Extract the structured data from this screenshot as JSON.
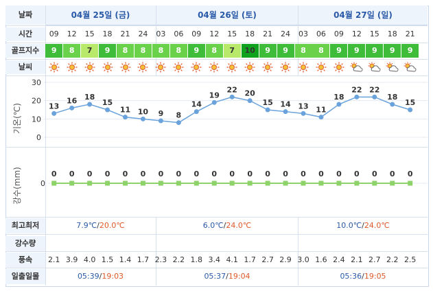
{
  "labels": {
    "date": "날짜",
    "time": "시간",
    "golf_index": "골프지수",
    "weather": "날씨",
    "temp_axis": "기온(℃)",
    "precip_axis": "강수(mm)",
    "highlow": "최고최저",
    "precip_amount": "강수량",
    "wind": "풍속",
    "sunrise_sunset": "일출일몰"
  },
  "days": [
    {
      "label": "04월 25일 (금)",
      "min": "7.9℃",
      "max": "20.0℃",
      "sunrise": "05:39",
      "sunset": "19:03"
    },
    {
      "label": "04월 26일 (토)",
      "min": "6.0℃",
      "max": "24.0℃",
      "sunrise": "05:37",
      "sunset": "19:04"
    },
    {
      "label": "04월 27일 (일)",
      "min": "10.0℃",
      "max": "24.0℃",
      "sunrise": "05:36",
      "sunset": "19:05"
    }
  ],
  "hours": [
    "09",
    "12",
    "15",
    "18",
    "21",
    "24",
    "03",
    "06",
    "09",
    "12",
    "15",
    "18",
    "21",
    "24",
    "03",
    "06",
    "09",
    "12",
    "15",
    "18",
    "21"
  ],
  "golf_index": [
    "9",
    "8",
    "7",
    "9",
    "8",
    "8",
    "8",
    "8",
    "9",
    "8",
    "7",
    "10",
    "9",
    "9",
    "8",
    "8",
    "9",
    "9",
    "9",
    "9",
    "9"
  ],
  "golf_colors": {
    "7": "#b8e96a",
    "8": "#6ad24a",
    "9": "#3fbd3a",
    "10": "#0fa21f"
  },
  "weather_icons": [
    "sun-icon",
    "sun-icon",
    "sun-icon",
    "sun-icon",
    "sun-icon",
    "sun-icon",
    "sun-icon",
    "sun-icon",
    "sun-icon",
    "sun-icon",
    "sun-icon",
    "sun-icon",
    "sun-icon",
    "sun-icon",
    "sun-icon",
    "sun-icon",
    "sun-icon",
    "partly-cloudy-icon",
    "partly-cloudy-icon",
    "partly-cloudy-icon",
    "partly-cloudy-icon"
  ],
  "wind": [
    "2.1",
    "3.9",
    "4.0",
    "1.5",
    "1.4",
    "1.7",
    "2.3",
    "2.2",
    "1.8",
    "3.4",
    "4.1",
    "1.7",
    "2.7",
    "2.9",
    "3.0",
    "1.6",
    "2.4",
    "2.1",
    "2.7",
    "2.2",
    "2.5"
  ],
  "temp_axis_ticks": [
    "30",
    "20",
    "10",
    "0"
  ],
  "precip_axis_ticks": [
    "0"
  ],
  "chart_data": [
    {
      "type": "line",
      "x": [
        "09",
        "12",
        "15",
        "18",
        "21",
        "24",
        "03",
        "06",
        "09",
        "12",
        "15",
        "18",
        "21",
        "24",
        "03",
        "06",
        "09",
        "12",
        "15",
        "18",
        "21"
      ],
      "values": [
        13,
        16,
        18,
        15,
        11,
        10,
        9,
        8,
        14,
        19,
        22,
        20,
        15,
        14,
        13,
        11,
        18,
        22,
        22,
        18,
        15
      ],
      "ylabel": "기온(℃)",
      "ylim": [
        0,
        30
      ],
      "grid": true,
      "color": "#6aa3dc"
    },
    {
      "type": "line",
      "x": [
        "09",
        "12",
        "15",
        "18",
        "21",
        "24",
        "03",
        "06",
        "09",
        "12",
        "15",
        "18",
        "21",
        "24",
        "03",
        "06",
        "09",
        "12",
        "15",
        "18",
        "21"
      ],
      "values": [
        0,
        0,
        0,
        0,
        0,
        0,
        0,
        0,
        0,
        0,
        0,
        0,
        0,
        0,
        0,
        0,
        0,
        0,
        0,
        0,
        0
      ],
      "ylabel": "강수(mm)",
      "ylim": [
        0,
        1
      ],
      "grid": true,
      "color": "#8ed36a"
    }
  ]
}
